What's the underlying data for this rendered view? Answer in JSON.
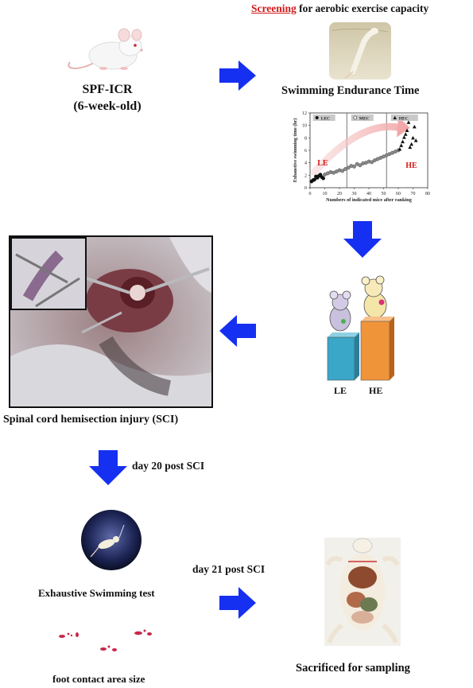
{
  "screening": {
    "highlight": "Screening",
    "rest": " for aerobic exercise capacity"
  },
  "mouse_label": {
    "line1": "SPF-ICR",
    "line2": "(6-week-old)"
  },
  "swim_endurance_label": "Swimming Endurance Time",
  "surgery_label": "Spinal cord hemisection injury (SCI)",
  "group_bars": {
    "left": "LE",
    "right": "HE",
    "colors": {
      "left": "#3aa6c8",
      "right": "#f0943a"
    }
  },
  "day20_label": "day 20 post SCI",
  "day21_label": "day 21 post SCI",
  "swim_test_label": "Exhaustive Swimming test",
  "foot_label": "foot contact area size",
  "sacrifice_label": "Sacrificed for sampling",
  "arrow_color": "#1530f0",
  "chart_data": {
    "type": "scatter",
    "ylabel": "Exhaustive swimming time (hr)",
    "xlabel": "Numbers of indicated mice after ranking",
    "xlim": [
      0,
      80
    ],
    "ylim": [
      0,
      12
    ],
    "xticks": [
      0,
      10,
      20,
      30,
      40,
      50,
      60,
      70,
      80
    ],
    "yticks": [
      0,
      2,
      4,
      6,
      8,
      10,
      12
    ],
    "dividers": [
      25,
      52
    ],
    "legend": [
      "LEC",
      "MEC",
      "HEC"
    ],
    "annotations": {
      "low": "LE",
      "high": "HE"
    },
    "series": [
      {
        "name": "LEC",
        "marker": "circle-filled",
        "x": [
          1,
          2,
          3,
          4,
          5,
          6,
          7,
          8,
          9
        ],
        "y": [
          1.0,
          1.2,
          1.3,
          1.8,
          1.6,
          1.9,
          2.1,
          1.7,
          1.5
        ]
      },
      {
        "name": "MEC",
        "marker": "circle-open",
        "x": [
          10,
          12,
          14,
          16,
          18,
          20,
          22,
          24,
          26,
          28,
          30,
          32,
          34,
          36,
          38,
          40,
          42,
          44,
          46,
          48,
          50,
          52,
          54,
          56,
          58,
          60
        ],
        "y": [
          2.1,
          2.3,
          2.5,
          2.4,
          2.6,
          2.8,
          2.7,
          3.0,
          3.2,
          3.5,
          3.4,
          3.8,
          3.6,
          3.9,
          4.0,
          4.2,
          4.1,
          4.4,
          4.6,
          4.8,
          5.0,
          5.2,
          5.4,
          5.6,
          5.8,
          6.0
        ]
      },
      {
        "name": "HEC",
        "marker": "triangle-filled",
        "x": [
          61,
          62,
          63,
          64,
          65,
          66,
          67,
          68,
          69,
          70,
          71,
          72
        ],
        "y": [
          6.2,
          6.8,
          7.4,
          8.1,
          8.6,
          9.2,
          10.5,
          6.5,
          7.0,
          8.0,
          9.8,
          7.6
        ]
      }
    ]
  }
}
